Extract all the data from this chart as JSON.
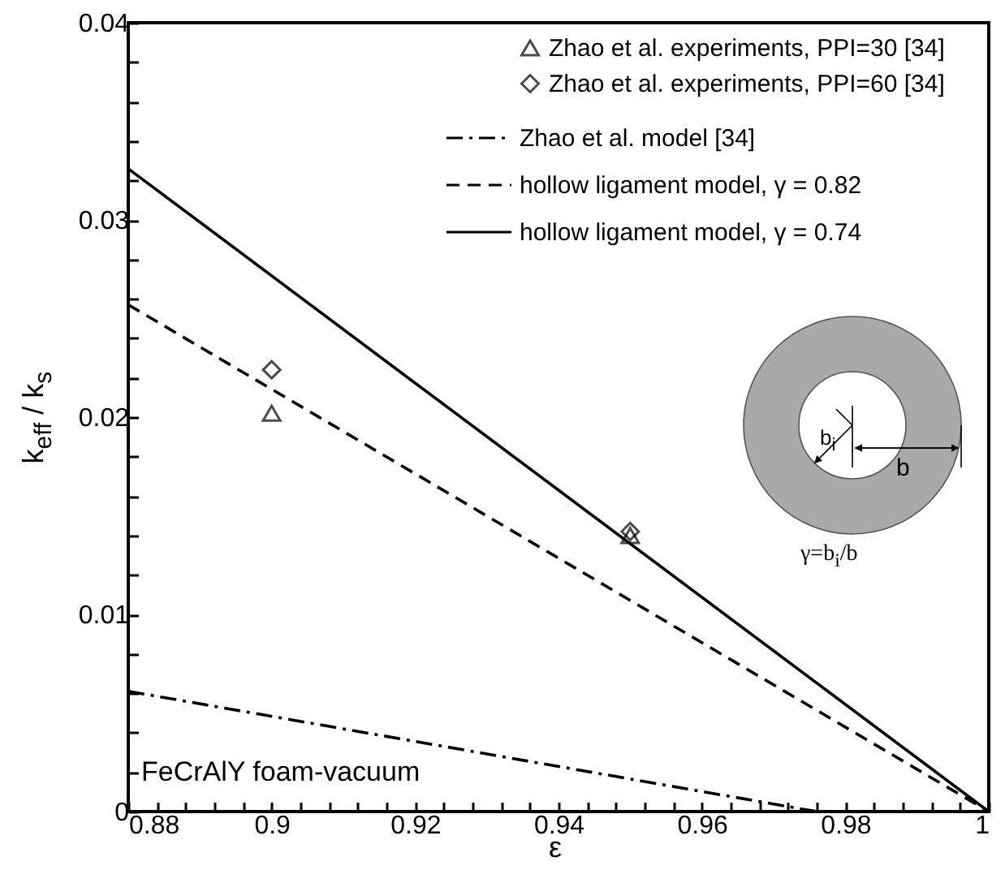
{
  "chart_data": {
    "type": "line",
    "xlabel": "ε",
    "ylabel": "k$_{eff}$ / k$_{s}$",
    "xlim": [
      0.88,
      1
    ],
    "ylim": [
      0,
      0.04
    ],
    "xticks": [
      0.88,
      {
        "value": 0.884,
        "label": null
      },
      {
        "value": 0.888,
        "label": null
      },
      {
        "value": 0.892,
        "label": null
      },
      {
        "value": 0.896,
        "label": null
      },
      0.9,
      {
        "value": 0.904,
        "label": null
      },
      {
        "value": 0.908,
        "label": null
      },
      {
        "value": 0.912,
        "label": null
      },
      {
        "value": 0.916,
        "label": null
      },
      0.92,
      {
        "value": 0.924,
        "label": null
      },
      {
        "value": 0.928,
        "label": null
      },
      {
        "value": 0.932,
        "label": null
      },
      {
        "value": 0.936,
        "label": null
      },
      0.94,
      {
        "value": 0.944,
        "label": null
      },
      {
        "value": 0.948,
        "label": null
      },
      {
        "value": 0.952,
        "label": null
      },
      {
        "value": 0.956,
        "label": null
      },
      0.96,
      {
        "value": 0.964,
        "label": null
      },
      {
        "value": 0.968,
        "label": null
      },
      {
        "value": 0.972,
        "label": null
      },
      {
        "value": 0.976,
        "label": null
      },
      0.98,
      {
        "value": 0.984,
        "label": null
      },
      {
        "value": 0.988,
        "label": null
      },
      {
        "value": 0.992,
        "label": null
      },
      {
        "value": 0.996,
        "label": null
      },
      1
    ],
    "yticks": [
      0,
      {
        "value": 0.002,
        "label": null
      },
      {
        "value": 0.004,
        "label": null
      },
      {
        "value": 0.006,
        "label": null
      },
      {
        "value": 0.008,
        "label": null
      },
      0.01,
      {
        "value": 0.012,
        "label": null
      },
      {
        "value": 0.014,
        "label": null
      },
      {
        "value": 0.016,
        "label": null
      },
      {
        "value": 0.018,
        "label": null
      },
      0.02,
      {
        "value": 0.022,
        "label": null
      },
      {
        "value": 0.024,
        "label": null
      },
      {
        "value": 0.026,
        "label": null
      },
      {
        "value": 0.028,
        "label": null
      },
      0.03,
      {
        "value": 0.032,
        "label": null
      },
      {
        "value": 0.034,
        "label": null
      },
      {
        "value": 0.036,
        "label": null
      },
      {
        "value": 0.038,
        "label": null
      },
      0.04
    ],
    "grid": false,
    "legend": "top right",
    "series": [
      {
        "name": "Zhao et al. experiments, PPI=30 [34]",
        "type": "scatter",
        "marker": "triangle",
        "color": "#000000",
        "x": [
          0.9,
          0.95
        ],
        "values": [
          0.0202,
          0.014
        ]
      },
      {
        "name": "Zhao et al. experiments, PPI=60 [34]",
        "type": "scatter",
        "marker": "diamond",
        "color": "#000000",
        "x": [
          0.9,
          0.95
        ],
        "values": [
          0.0224,
          0.0142
        ]
      },
      {
        "name": "Zhao et al. model [34]",
        "line_style": "dashdot",
        "color": "#000000",
        "x": [
          0.88,
          0.976
        ],
        "values": [
          0.0061,
          0
        ]
      },
      {
        "name": "hollow ligament model, γ = 0.82",
        "line_style": "dashed",
        "color": "#000000",
        "x": [
          0.88,
          1
        ],
        "values": [
          0.0257,
          0
        ]
      },
      {
        "name": "hollow ligament model, γ = 0.74",
        "line_style": "solid",
        "color": "#000000",
        "x": [
          0.88,
          1
        ],
        "values": [
          0.0326,
          0
        ]
      }
    ],
    "annotations": [
      "FeCrAlY foam-vacuum",
      "b$_{i}$",
      "b",
      "γ=b$_{i}$/b"
    ]
  }
}
